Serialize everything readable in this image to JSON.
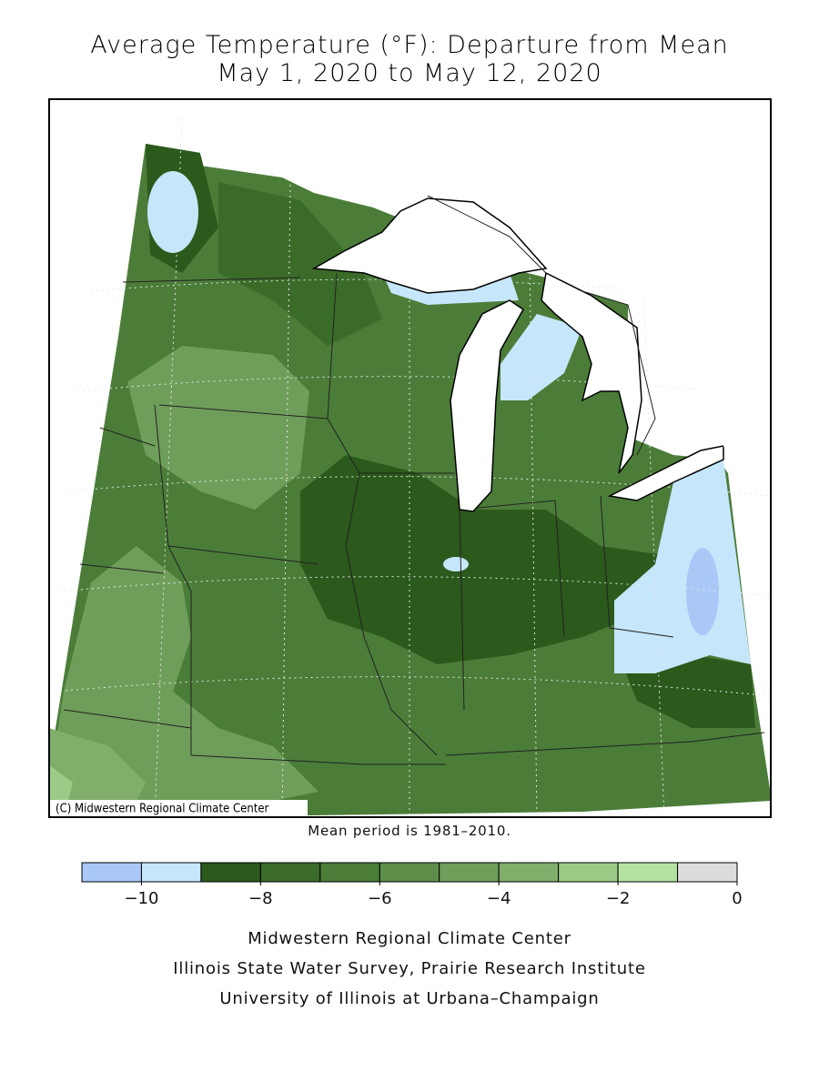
{
  "title": [
    "Average Temperature (°F): Departure from Mean",
    "May 1, 2020 to May 12, 2020"
  ],
  "map": {
    "credit": "(C) Midwestern Regional Climate Center"
  },
  "note": "Mean period is 1981–2010.",
  "legend": {
    "bins": [
      -11,
      -10,
      -9,
      -8,
      -7,
      -6,
      -5,
      -4,
      -3,
      -2,
      -1,
      0
    ],
    "colors": [
      "#a9c8f7",
      "#c6e6fb",
      "#2b5a1c",
      "#3a6b29",
      "#4b7d39",
      "#5d8e49",
      "#6f9e5a",
      "#82ae6b",
      "#9bcb86",
      "#b4e2a1",
      "#dcdcdc"
    ],
    "ticks": [
      {
        "value": -10,
        "label": "−10"
      },
      {
        "value": -8,
        "label": "−8"
      },
      {
        "value": -6,
        "label": "−6"
      },
      {
        "value": -4,
        "label": "−4"
      },
      {
        "value": -2,
        "label": "−2"
      },
      0
    ]
  },
  "footer": [
    "Midwestern Regional Climate Center",
    "Illinois State Water Survey, Prairie Research Institute",
    "University of Illinois at Urbana–Champaign"
  ]
}
